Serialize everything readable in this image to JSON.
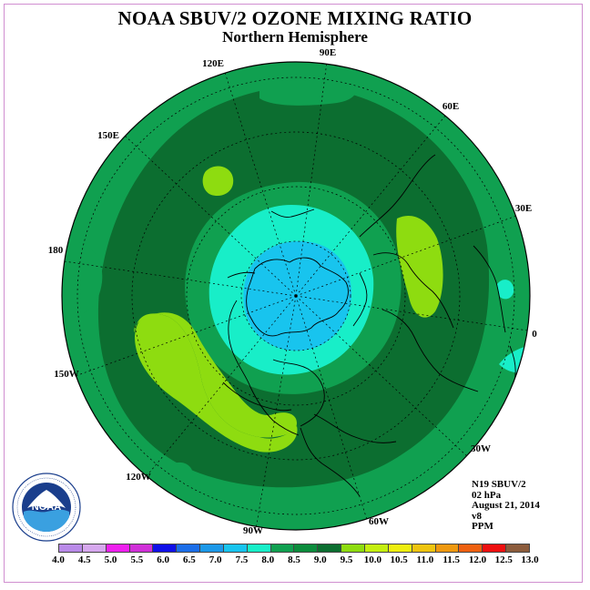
{
  "title": "NOAA SBUV/2 OZONE MIXING RATIO",
  "subtitle": "Northern Hemisphere",
  "longitude_labels": {
    "e90": "90E",
    "e60": "60E",
    "e30": "30E",
    "zero": "0",
    "w30": "30W",
    "w60": "60W",
    "w90": "90W",
    "w120": "120W",
    "w150": "150W",
    "d180": "180",
    "e150": "150E",
    "e120": "120E"
  },
  "info": {
    "instrument": "N19 SBUV/2",
    "level": "02 hPa",
    "date": "August 21, 2014",
    "version": "v8",
    "units": "PPM"
  },
  "colorbar": {
    "ticks": [
      "4.0",
      "4.5",
      "5.0",
      "5.5",
      "6.0",
      "6.5",
      "7.0",
      "7.5",
      "8.0",
      "8.5",
      "9.0",
      "9.5",
      "10.0",
      "10.5",
      "11.0",
      "11.5",
      "12.0",
      "12.5",
      "13.0"
    ],
    "colors": [
      "#b98ae8",
      "#d6a8ee",
      "#ee20ee",
      "#d030d8",
      "#1010e8",
      "#1c6ee8",
      "#1c98e8",
      "#18c4ee",
      "#18eec8",
      "#10a050",
      "#0c8c3c",
      "#0c6e30",
      "#8edc10",
      "#c4ee10",
      "#eeee10",
      "#eec410",
      "#ee9810",
      "#ee6010",
      "#ee1010",
      "#8c5c3c"
    ]
  },
  "logo": {
    "name": "NOAA",
    "ring_text": "NATIONAL OCEANIC AND ATMOSPHERIC ADMINISTRATION · U.S. DEPARTMENT OF COMMERCE"
  }
}
